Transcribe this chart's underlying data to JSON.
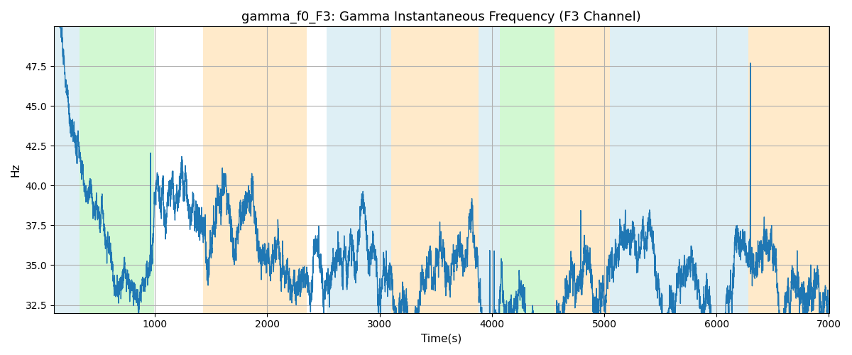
{
  "title": "gamma_f0_F3: Gamma Instantaneous Frequency (F3 Channel)",
  "xlabel": "Time(s)",
  "ylabel": "Hz",
  "xlim": [
    100,
    7000
  ],
  "ylim": [
    32.0,
    50.0
  ],
  "yticks": [
    32.5,
    35.0,
    37.5,
    40.0,
    42.5,
    45.0,
    47.5
  ],
  "xticks": [
    1000,
    2000,
    3000,
    4000,
    5000,
    6000,
    7000
  ],
  "line_color": "#1f77b4",
  "line_width": 1.0,
  "bg_color": "#ffffff",
  "grid_color": "#b0b0b0",
  "bands": [
    {
      "xmin": 100,
      "xmax": 330,
      "color": "#add8e6",
      "alpha": 0.4
    },
    {
      "xmin": 330,
      "xmax": 990,
      "color": "#90ee90",
      "alpha": 0.4
    },
    {
      "xmin": 1430,
      "xmax": 2350,
      "color": "#ffdaa0",
      "alpha": 0.55
    },
    {
      "xmin": 2530,
      "xmax": 3100,
      "color": "#add8e6",
      "alpha": 0.4
    },
    {
      "xmin": 3100,
      "xmax": 3880,
      "color": "#ffdaa0",
      "alpha": 0.55
    },
    {
      "xmin": 3880,
      "xmax": 4070,
      "color": "#add8e6",
      "alpha": 0.4
    },
    {
      "xmin": 4070,
      "xmax": 4560,
      "color": "#90ee90",
      "alpha": 0.4
    },
    {
      "xmin": 4560,
      "xmax": 5050,
      "color": "#ffdaa0",
      "alpha": 0.55
    },
    {
      "xmin": 5050,
      "xmax": 5380,
      "color": "#add8e6",
      "alpha": 0.4
    },
    {
      "xmin": 5380,
      "xmax": 6280,
      "color": "#add8e6",
      "alpha": 0.4
    },
    {
      "xmin": 6280,
      "xmax": 7000,
      "color": "#ffdaa0",
      "alpha": 0.55
    }
  ],
  "seed": 42,
  "n_points": 6901
}
